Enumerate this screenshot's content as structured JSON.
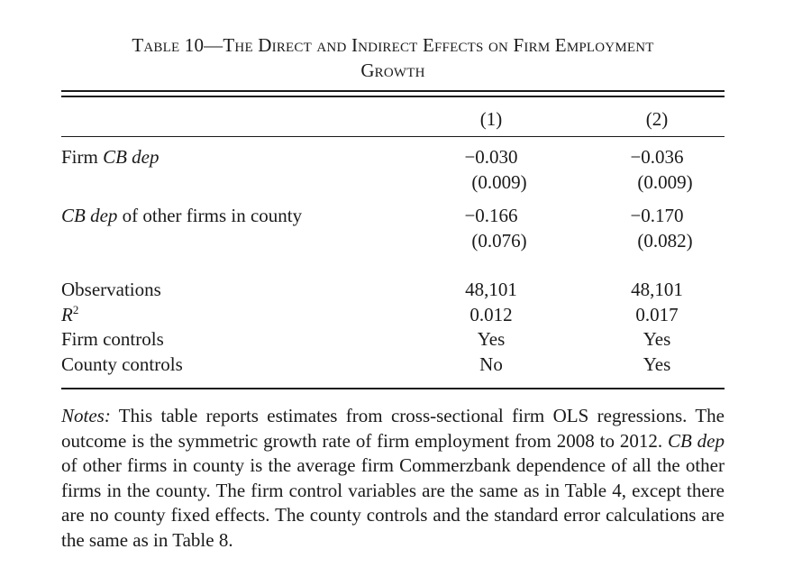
{
  "title": {
    "line1": "Table 10—The Direct and Indirect Effects on Firm Employment",
    "line2": "Growth"
  },
  "columns": [
    "(1)",
    "(2)"
  ],
  "rows": [
    {
      "label_italic": "Firm ",
      "label_italic_part": "CB dep",
      "label_rest": "",
      "coef": [
        "−0.030",
        "−0.036"
      ],
      "se": [
        "(0.009)",
        "(0.009)"
      ]
    },
    {
      "label_italic_part": "CB dep",
      "label_rest": " of other firms in county",
      "coef": [
        "−0.166",
        "−0.170"
      ],
      "se": [
        "(0.076)",
        "(0.082)"
      ]
    }
  ],
  "stats": [
    {
      "label": "Observations",
      "values": [
        "48,101",
        "48,101"
      ]
    },
    {
      "label": "R",
      "label_sup": "2",
      "values": [
        "0.012",
        "0.017"
      ]
    },
    {
      "label": "Firm controls",
      "values": [
        "Yes",
        "Yes"
      ]
    },
    {
      "label": "County controls",
      "values": [
        "No",
        "Yes"
      ]
    }
  ],
  "notes": {
    "lead": "Notes:",
    "p1": " This table reports estimates from cross-sectional firm OLS regressions. The outcome is the symmetric growth rate of firm employment from 2008 to 2012. ",
    "italic_term": "CB dep",
    "p2": " of other firms in county is the average firm Commerzbank dependence of all the other firms in the county. The firm control variables are the same as in Table 4, except there are no county fixed effects. The county controls and the standard error calculations are the same as in Table 8."
  }
}
